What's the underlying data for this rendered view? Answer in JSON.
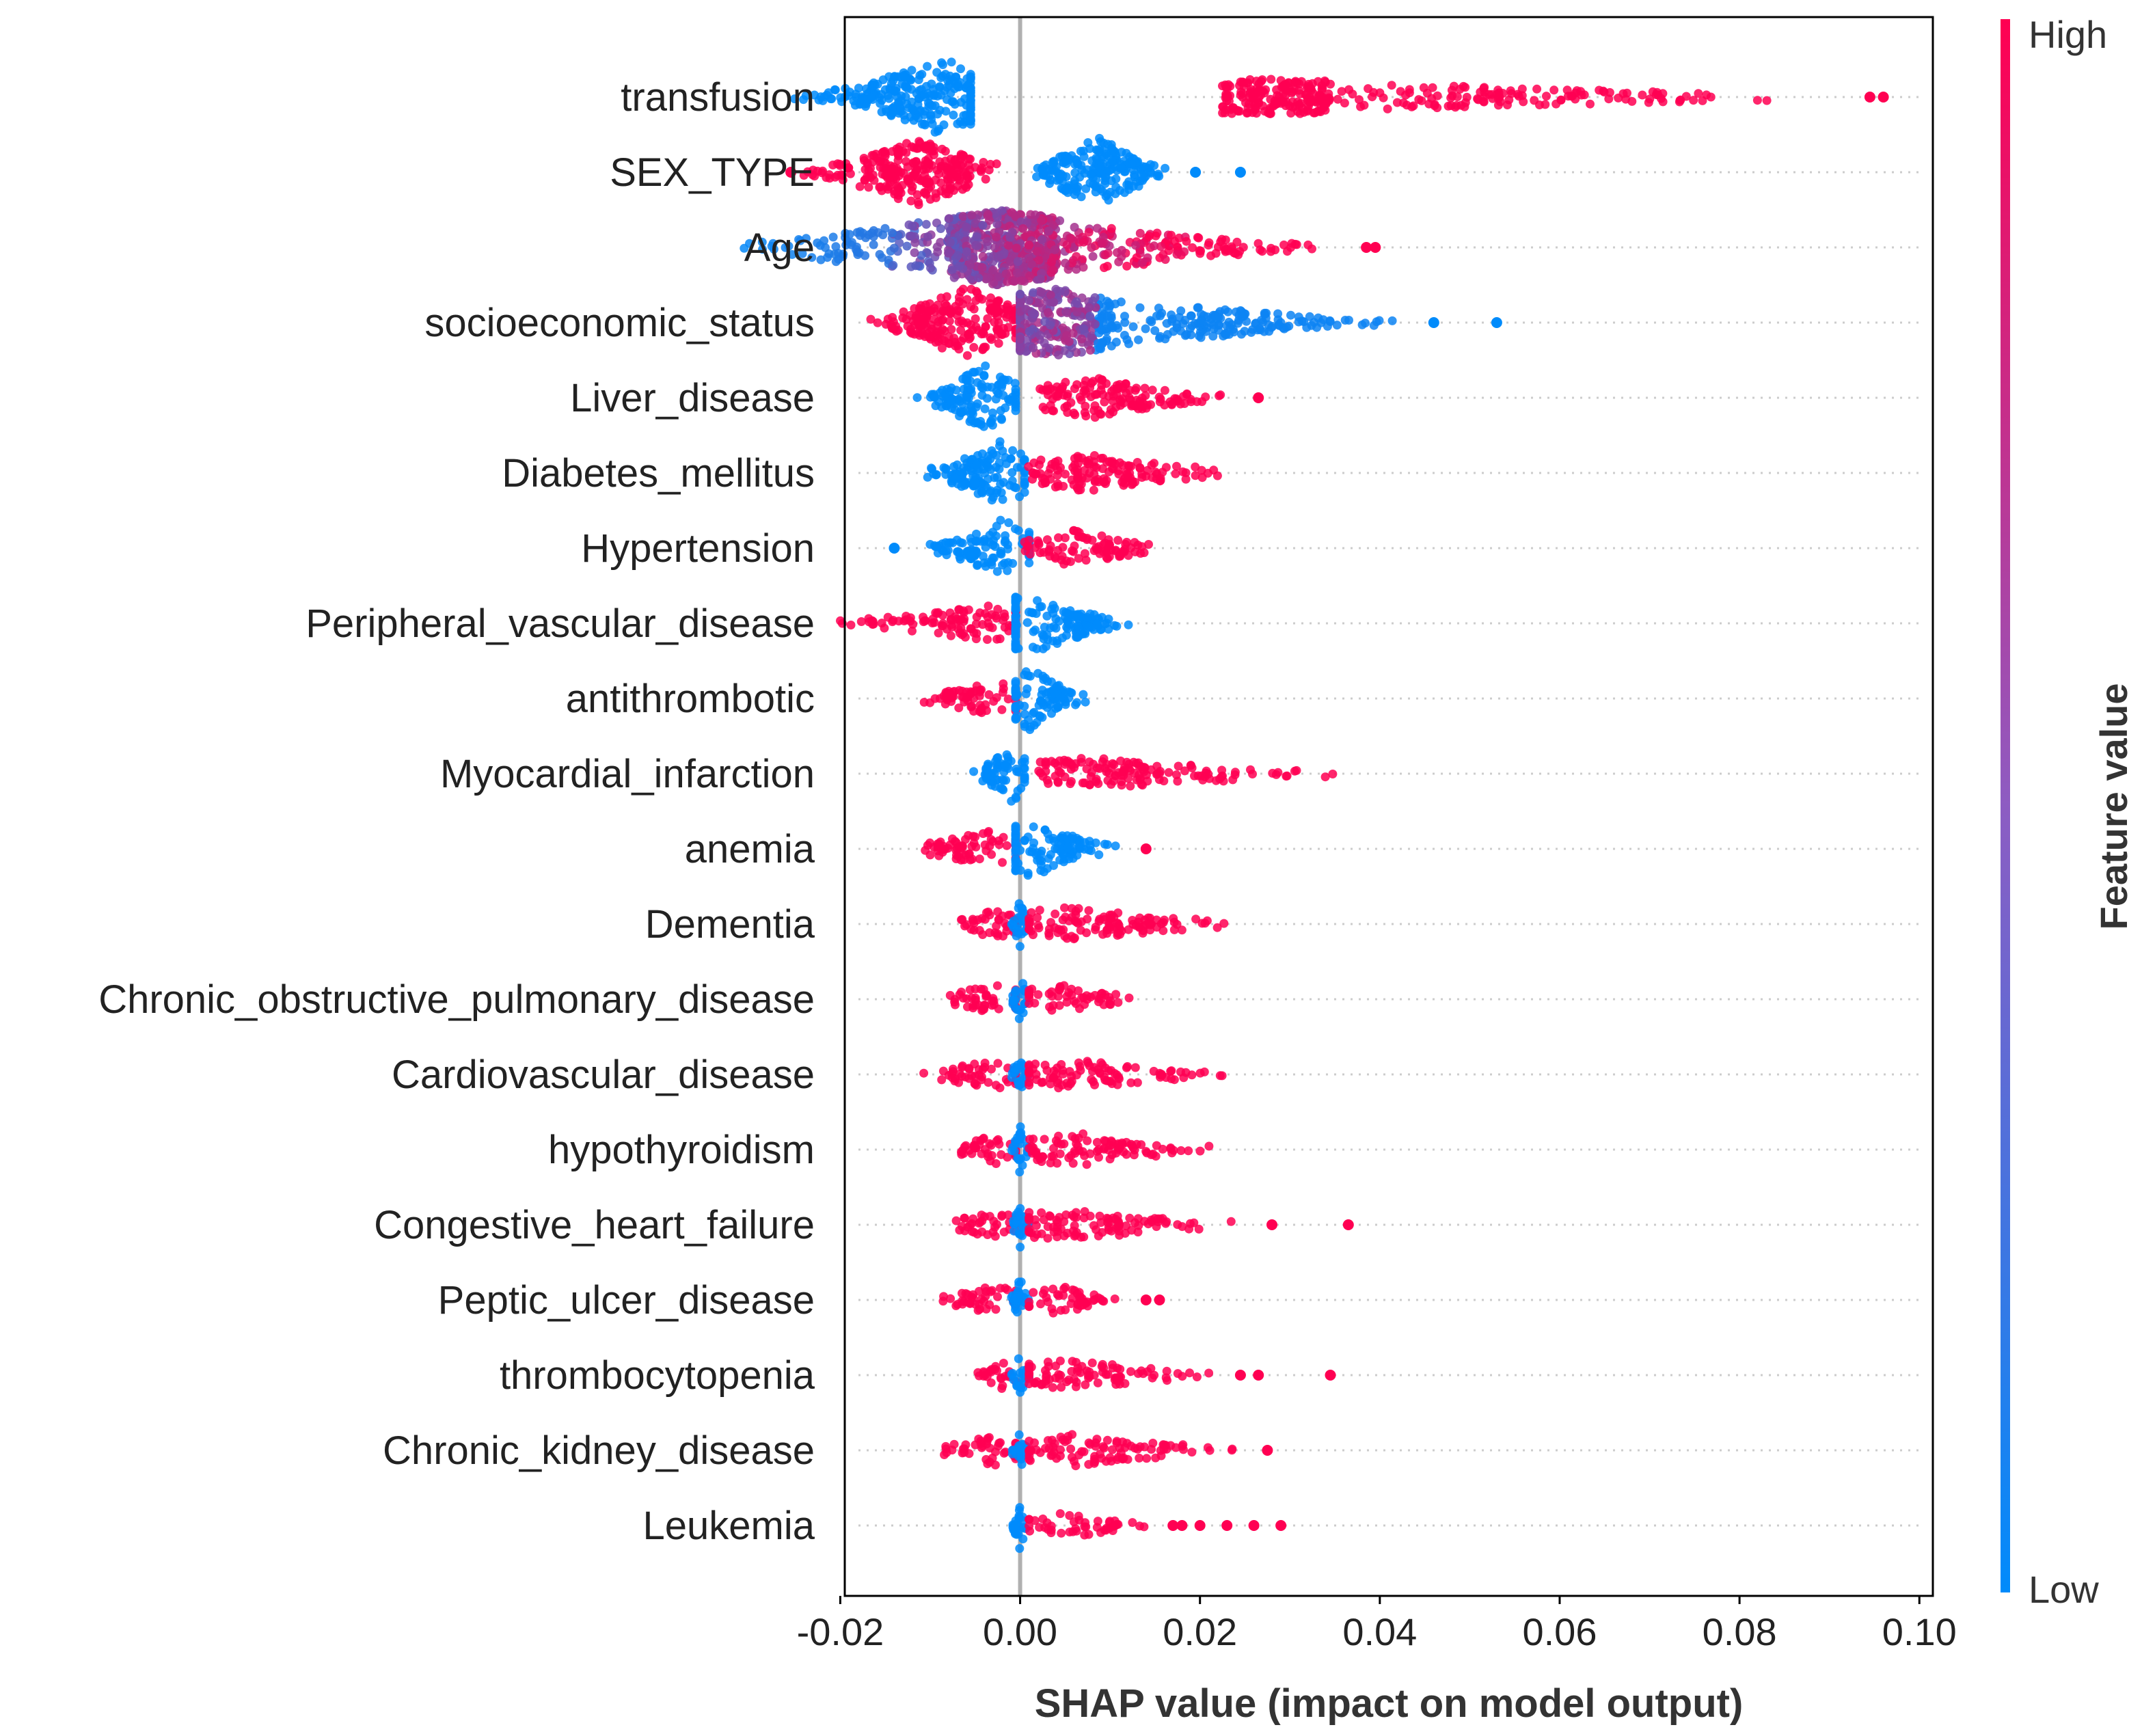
{
  "chart_data": {
    "type": "scatter",
    "subtype": "shap-beeswarm",
    "xlabel": "SHAP value (impact on model output)",
    "ylabel": "",
    "xlim": [
      -0.0195,
      0.1015
    ],
    "xticks": [
      {
        "value": -0.02,
        "label": "-0.02"
      },
      {
        "value": 0.0,
        "label": "0.00"
      },
      {
        "value": 0.02,
        "label": "0.02"
      },
      {
        "value": 0.04,
        "label": "0.04"
      },
      {
        "value": 0.06,
        "label": "0.06"
      },
      {
        "value": 0.08,
        "label": "0.08"
      },
      {
        "value": 0.1,
        "label": "0.10"
      }
    ],
    "colorbar": {
      "title": "Feature value",
      "high_label": "High",
      "low_label": "Low",
      "high_color": "#ff0052",
      "low_color": "#008bfb"
    },
    "zero_line_color": "#b0b0b0",
    "features": [
      {
        "name": "transfusion",
        "segments": [
          {
            "min": -0.0255,
            "peak": -0.0085,
            "max": -0.0055,
            "density": 1.0,
            "color": "#008bfb"
          },
          {
            "min": 0.0205,
            "peak": 0.0285,
            "max": 0.088,
            "density": 0.38,
            "color": "#ff0052"
          }
        ],
        "outliers": [
          {
            "x": 0.0945,
            "c": "#ff0052"
          },
          {
            "x": 0.096,
            "c": "#ff0052"
          }
        ]
      },
      {
        "name": "SEX_TYPE",
        "segments": [
          {
            "min": -0.025,
            "peak": -0.0115,
            "max": -0.001,
            "density": 0.85,
            "color": "#ff0052"
          },
          {
            "min": 0.001,
            "peak": 0.0085,
            "max": 0.018,
            "density": 0.95,
            "color": "#008bfb"
          }
        ],
        "outliers": [
          {
            "x": -0.0255,
            "c": "#ff0052"
          },
          {
            "x": 0.0195,
            "c": "#008bfb"
          },
          {
            "x": 0.0245,
            "c": "#008bfb"
          }
        ]
      },
      {
        "name": "Age",
        "segments": [
          {
            "min": -0.033,
            "peak": -0.002,
            "max": 0.034,
            "density": 1.0,
            "color": "mixed-age"
          }
        ],
        "outliers": [
          {
            "x": 0.0385,
            "c": "#ff0052"
          },
          {
            "x": 0.0395,
            "c": "#ff0052"
          }
        ]
      },
      {
        "name": "socioeconomic_status",
        "segments": [
          {
            "min": -0.018,
            "peak": -0.006,
            "max": -0.0005,
            "density": 0.95,
            "color": "#ff0052"
          },
          {
            "min": 0.0,
            "peak": 0.004,
            "max": 0.042,
            "density": 0.85,
            "color": "mixed-ses"
          }
        ],
        "outliers": [
          {
            "x": 0.046,
            "c": "#008bfb"
          },
          {
            "x": 0.053,
            "c": "#008bfb"
          }
        ]
      },
      {
        "name": "Liver_disease",
        "segments": [
          {
            "min": -0.012,
            "peak": -0.004,
            "max": -0.0005,
            "density": 0.85,
            "color": "#008bfb"
          },
          {
            "min": 0.0,
            "peak": 0.008,
            "max": 0.023,
            "density": 0.45,
            "color": "#ff0052"
          }
        ],
        "outliers": [
          {
            "x": 0.0265,
            "c": "#ff0052"
          }
        ]
      },
      {
        "name": "Diabetes_mellitus",
        "segments": [
          {
            "min": -0.0115,
            "peak": -0.002,
            "max": 0.0005,
            "density": 0.85,
            "color": "#008bfb"
          },
          {
            "min": 0.0005,
            "peak": 0.007,
            "max": 0.0255,
            "density": 0.42,
            "color": "#ff0052"
          }
        ],
        "outliers": []
      },
      {
        "name": "Hypertension",
        "segments": [
          {
            "min": -0.011,
            "peak": -0.002,
            "max": 0.001,
            "density": 0.7,
            "color": "#008bfb"
          },
          {
            "min": 0.0005,
            "peak": 0.006,
            "max": 0.017,
            "density": 0.38,
            "color": "#ff0052"
          }
        ],
        "outliers": [
          {
            "x": -0.014,
            "c": "#008bfb"
          }
        ]
      },
      {
        "name": "Peripheral_vascular_disease",
        "segments": [
          {
            "min": -0.021,
            "peak": -0.004,
            "max": -0.0005,
            "density": 0.38,
            "color": "#ff0052"
          },
          {
            "min": -0.0005,
            "peak": 0.001,
            "max": 0.013,
            "density": 0.8,
            "color": "#008bfb"
          }
        ],
        "outliers": []
      },
      {
        "name": "antithrombotic",
        "segments": [
          {
            "min": -0.0115,
            "peak": -0.003,
            "max": -0.0005,
            "density": 0.4,
            "color": "#ff0052"
          },
          {
            "min": -0.0005,
            "peak": 0.001,
            "max": 0.008,
            "density": 0.8,
            "color": "#008bfb"
          }
        ],
        "outliers": []
      },
      {
        "name": "Myocardial_infarction",
        "segments": [
          {
            "min": -0.0055,
            "peak": -0.001,
            "max": 0.0005,
            "density": 0.75,
            "color": "#008bfb"
          },
          {
            "min": 0.0005,
            "peak": 0.008,
            "max": 0.0365,
            "density": 0.3,
            "color": "#ff0052"
          }
        ],
        "outliers": []
      },
      {
        "name": "anemia",
        "segments": [
          {
            "min": -0.0135,
            "peak": -0.004,
            "max": -0.0005,
            "density": 0.38,
            "color": "#ff0052"
          },
          {
            "min": -0.0005,
            "peak": 0.001,
            "max": 0.011,
            "density": 0.75,
            "color": "#008bfb"
          }
        ],
        "outliers": [
          {
            "x": 0.014,
            "c": "#ff0052"
          }
        ]
      },
      {
        "name": "Dementia",
        "segments": [
          {
            "min": -0.0085,
            "peak": -0.003,
            "max": -0.0005,
            "density": 0.3,
            "color": "#ff0052"
          },
          {
            "min": -0.001,
            "peak": 0.0,
            "max": 0.001,
            "density": 0.6,
            "color": "#008bfb"
          },
          {
            "min": 0.001,
            "peak": 0.005,
            "max": 0.026,
            "density": 0.33,
            "color": "#ff0052"
          }
        ],
        "outliers": []
      },
      {
        "name": "Chronic_obstructive_pulmonary_disease",
        "segments": [
          {
            "min": -0.0105,
            "peak": -0.003,
            "max": -0.0005,
            "density": 0.28,
            "color": "#ff0052"
          },
          {
            "min": -0.001,
            "peak": 0.0,
            "max": 0.001,
            "density": 0.6,
            "color": "#008bfb"
          },
          {
            "min": 0.001,
            "peak": 0.004,
            "max": 0.0135,
            "density": 0.28,
            "color": "#ff0052"
          }
        ],
        "outliers": []
      },
      {
        "name": "Cardiovascular_disease",
        "segments": [
          {
            "min": -0.012,
            "peak": -0.003,
            "max": -0.0005,
            "density": 0.28,
            "color": "#ff0052"
          },
          {
            "min": -0.001,
            "peak": 0.0,
            "max": 0.001,
            "density": 0.6,
            "color": "#008bfb"
          },
          {
            "min": 0.001,
            "peak": 0.005,
            "max": 0.024,
            "density": 0.3,
            "color": "#ff0052"
          }
        ],
        "outliers": []
      },
      {
        "name": "hypothyroidism",
        "segments": [
          {
            "min": -0.0085,
            "peak": -0.003,
            "max": -0.0005,
            "density": 0.28,
            "color": "#ff0052"
          },
          {
            "min": -0.001,
            "peak": 0.0,
            "max": 0.001,
            "density": 0.6,
            "color": "#008bfb"
          },
          {
            "min": 0.001,
            "peak": 0.006,
            "max": 0.0215,
            "density": 0.33,
            "color": "#ff0052"
          }
        ],
        "outliers": []
      },
      {
        "name": "Congestive_heart_failure",
        "segments": [
          {
            "min": -0.009,
            "peak": -0.003,
            "max": -0.0005,
            "density": 0.28,
            "color": "#ff0052"
          },
          {
            "min": -0.001,
            "peak": 0.0,
            "max": 0.001,
            "density": 0.6,
            "color": "#008bfb"
          },
          {
            "min": 0.001,
            "peak": 0.005,
            "max": 0.025,
            "density": 0.3,
            "color": "#ff0052"
          }
        ],
        "outliers": [
          {
            "x": 0.028,
            "c": "#ff0052"
          },
          {
            "x": 0.0365,
            "c": "#ff0052"
          }
        ]
      },
      {
        "name": "Peptic_ulcer_disease",
        "segments": [
          {
            "min": -0.0095,
            "peak": -0.003,
            "max": -0.0005,
            "density": 0.28,
            "color": "#ff0052"
          },
          {
            "min": -0.001,
            "peak": 0.0,
            "max": 0.001,
            "density": 0.6,
            "color": "#008bfb"
          },
          {
            "min": 0.001,
            "peak": 0.004,
            "max": 0.0115,
            "density": 0.28,
            "color": "#ff0052"
          }
        ],
        "outliers": [
          {
            "x": 0.014,
            "c": "#ff0052"
          },
          {
            "x": 0.0155,
            "c": "#ff0052"
          }
        ]
      },
      {
        "name": "thrombocytopenia",
        "segments": [
          {
            "min": -0.0055,
            "peak": -0.002,
            "max": -0.0005,
            "density": 0.22,
            "color": "#ff0052"
          },
          {
            "min": -0.001,
            "peak": 0.0,
            "max": 0.001,
            "density": 0.6,
            "color": "#008bfb"
          },
          {
            "min": 0.001,
            "peak": 0.005,
            "max": 0.022,
            "density": 0.3,
            "color": "#ff0052"
          }
        ],
        "outliers": [
          {
            "x": 0.0245,
            "c": "#ff0052"
          },
          {
            "x": 0.0265,
            "c": "#ff0052"
          },
          {
            "x": 0.0345,
            "c": "#ff0052"
          }
        ]
      },
      {
        "name": "Chronic_kidney_disease",
        "segments": [
          {
            "min": -0.01,
            "peak": -0.003,
            "max": -0.0005,
            "density": 0.28,
            "color": "#ff0052"
          },
          {
            "min": -0.001,
            "peak": 0.0,
            "max": 0.001,
            "density": 0.6,
            "color": "#008bfb"
          },
          {
            "min": 0.001,
            "peak": 0.006,
            "max": 0.0245,
            "density": 0.3,
            "color": "#ff0052"
          }
        ],
        "outliers": [
          {
            "x": 0.0275,
            "c": "#ff0052"
          }
        ]
      },
      {
        "name": "Leukemia",
        "segments": [
          {
            "min": -0.0008,
            "peak": 0.0,
            "max": 0.001,
            "density": 0.6,
            "color": "#008bfb"
          },
          {
            "min": 0.001,
            "peak": 0.005,
            "max": 0.0145,
            "density": 0.22,
            "color": "#ff0052"
          }
        ],
        "outliers": [
          {
            "x": 0.017,
            "c": "#ff0052"
          },
          {
            "x": 0.018,
            "c": "#ff0052"
          },
          {
            "x": 0.02,
            "c": "#ff0052"
          },
          {
            "x": 0.023,
            "c": "#ff0052"
          },
          {
            "x": 0.026,
            "c": "#ff0052"
          },
          {
            "x": 0.029,
            "c": "#ff0052"
          }
        ]
      }
    ]
  }
}
